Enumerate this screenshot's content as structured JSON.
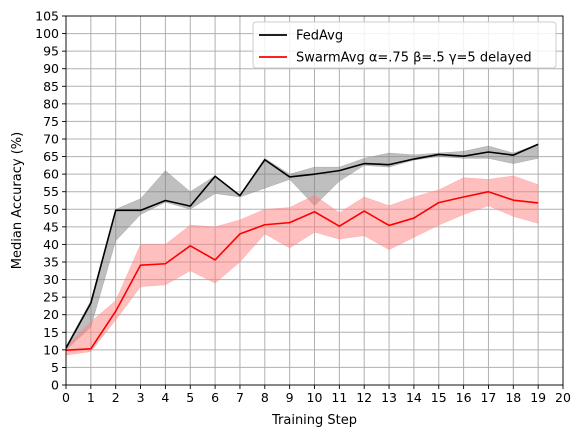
{
  "chart_data": {
    "type": "line",
    "title": "",
    "xlabel": "Training Step",
    "ylabel": "Median Accuracy (%)",
    "xlim": [
      0,
      20
    ],
    "ylim": [
      0,
      105
    ],
    "xticks": [
      0,
      1,
      2,
      3,
      4,
      5,
      6,
      7,
      8,
      9,
      10,
      11,
      12,
      13,
      14,
      15,
      16,
      17,
      18,
      19,
      20
    ],
    "yticks": [
      0,
      5,
      10,
      15,
      20,
      25,
      30,
      35,
      40,
      45,
      50,
      55,
      60,
      65,
      70,
      75,
      80,
      85,
      90,
      95,
      100,
      105
    ],
    "grid": true,
    "legend_position": "top-right",
    "series": [
      {
        "name": "FedAvg",
        "color": "#000000",
        "band_color": "#7f7f7f",
        "x": [
          0,
          1,
          2,
          3,
          4,
          5,
          6,
          7,
          8,
          9,
          10,
          11,
          12,
          13,
          14,
          15,
          16,
          17,
          18,
          19
        ],
        "values": [
          10.5,
          23.3,
          49.7,
          49.7,
          52.5,
          50.9,
          59.4,
          53.9,
          64.1,
          59.2,
          60.0,
          61.0,
          63.0,
          62.7,
          64.3,
          65.6,
          65.1,
          66.3,
          65.4,
          68.5
        ],
        "upper": [
          11.0,
          24.0,
          50.0,
          53.0,
          61.0,
          55.0,
          59.5,
          54.0,
          64.5,
          60.0,
          62.0,
          62.0,
          64.5,
          66.0,
          65.5,
          66.0,
          66.5,
          68.0,
          66.0,
          68.5
        ],
        "lower": [
          10.0,
          16.5,
          41.0,
          48.5,
          52.0,
          50.0,
          54.5,
          53.5,
          56.0,
          58.5,
          51.0,
          58.0,
          62.5,
          62.0,
          64.0,
          65.0,
          64.5,
          64.5,
          63.0,
          64.5
        ]
      },
      {
        "name": "SwarmAvg α=.75 β=.5 γ=5 delayed",
        "color": "#ff0000",
        "band_color": "#ff7f7f",
        "x": [
          0,
          1,
          2,
          3,
          4,
          5,
          6,
          7,
          8,
          9,
          10,
          11,
          12,
          13,
          14,
          15,
          16,
          17,
          18,
          19
        ],
        "values": [
          9.9,
          10.3,
          21.0,
          34.1,
          34.5,
          39.6,
          35.6,
          43.0,
          45.6,
          46.2,
          49.3,
          45.2,
          49.5,
          45.4,
          47.5,
          51.9,
          53.5,
          55.0,
          52.6,
          51.8
        ],
        "upper": [
          11.0,
          18.0,
          24.0,
          40.0,
          40.0,
          45.5,
          45.0,
          47.0,
          50.0,
          50.5,
          54.0,
          49.0,
          53.5,
          51.0,
          53.5,
          55.5,
          59.0,
          58.5,
          59.5,
          57.0
        ],
        "lower": [
          8.5,
          9.5,
          18.5,
          28.0,
          28.5,
          32.5,
          29.0,
          35.0,
          43.0,
          39.0,
          43.5,
          41.5,
          42.5,
          38.5,
          42.0,
          45.5,
          48.5,
          51.0,
          48.0,
          46.0
        ]
      }
    ]
  }
}
